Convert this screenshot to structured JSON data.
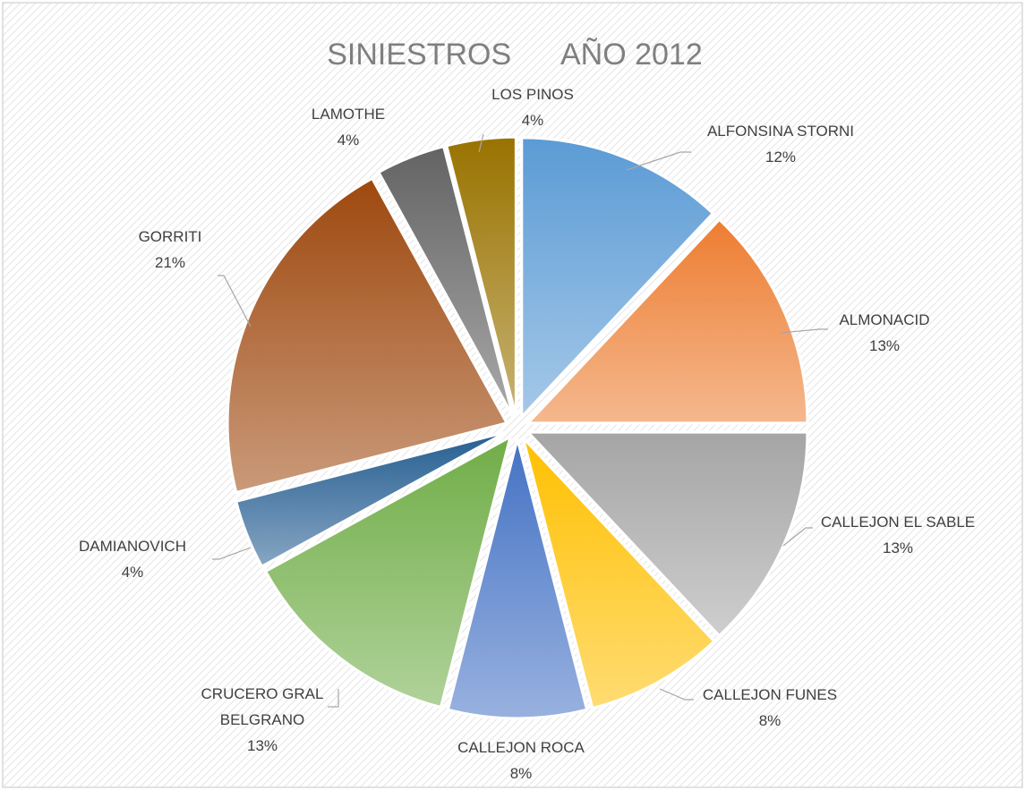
{
  "chart_data": {
    "type": "pie",
    "title": "SINIESTROS      AÑO 2012",
    "categories": [
      "ALFONSINA STORNI",
      "ALMONACID",
      "CALLEJON EL SABLE",
      "CALLEJON FUNES",
      "CALLEJON ROCA",
      "CRUCERO GRAL BELGRANO",
      "DAMIANOVICH",
      "GORRITI",
      "LAMOTHE",
      "LOS PINOS"
    ],
    "values": [
      12,
      13,
      13,
      8,
      8,
      13,
      4,
      21,
      4,
      4
    ],
    "value_labels": [
      "12%",
      "13%",
      "13%",
      "8%",
      "8%",
      "13%",
      "4%",
      "21%",
      "4%",
      "4%"
    ],
    "colors": [
      "#5b9bd5",
      "#ed7d31",
      "#a5a5a5",
      "#ffc000",
      "#4472c4",
      "#70ad47",
      "#255e91",
      "#9e480e",
      "#636363",
      "#997300"
    ]
  }
}
